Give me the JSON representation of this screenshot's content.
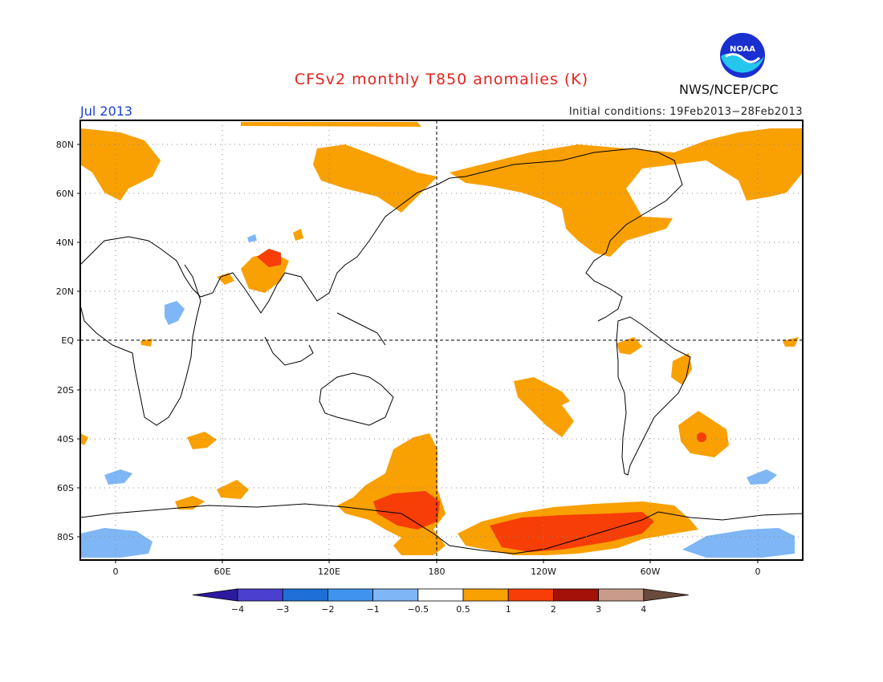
{
  "header": {
    "title": "CFSv2 monthly T850 anomalies (K)",
    "period": "Jul 2013",
    "initial_conditions": "Initial conditions: 19Feb2013−28Feb2013",
    "agency": "NWS/NCEP/CPC",
    "logo_text": "NOAA"
  },
  "map": {
    "lat_labels": [
      "80N",
      "60N",
      "40N",
      "20N",
      "EQ",
      "20S",
      "40S",
      "60S",
      "80S"
    ],
    "lon_labels": [
      "0",
      "60E",
      "120E",
      "180",
      "120W",
      "60W",
      "0"
    ]
  },
  "colorbar": {
    "labels": [
      "−4",
      "−3",
      "−2",
      "−1",
      "−0.5",
      "0.5",
      "1",
      "2",
      "3",
      "4"
    ],
    "colors": [
      "#2d1aa0",
      "#4a3fcf",
      "#1f6fd9",
      "#3f94ef",
      "#7fb6f5",
      "#ffffff",
      "#f9a003",
      "#f63e06",
      "#a31108",
      "#c89b8a",
      "#6a4a3c"
    ]
  }
}
